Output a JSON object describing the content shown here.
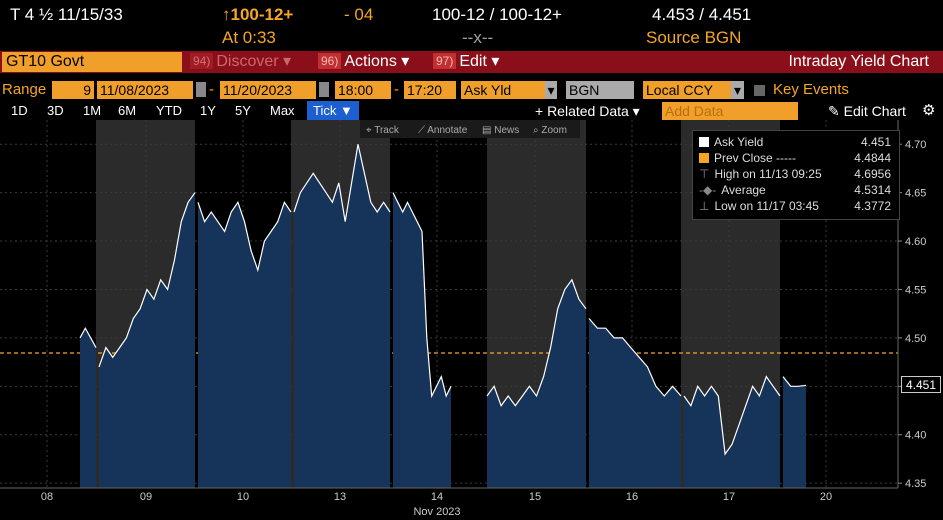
{
  "quote": {
    "symbol": "T 4 ½ 11/15/33",
    "price_change": "↑100-12+",
    "change": "- 04",
    "bid_ask": "100-12 / 100-12+",
    "yields": "4.453 / 4.451",
    "at_label": "At 0:33",
    "dashes": "--x--",
    "source": "Source BGN"
  },
  "header": {
    "ticker": "GT10 Govt",
    "discover_num": "94)",
    "discover": "Discover",
    "actions_num": "96)",
    "actions": "Actions",
    "edit_num": "97)",
    "edit": "Edit",
    "title": "Intraday Yield Chart"
  },
  "range_row": {
    "range_label": "Range",
    "interval": "9",
    "start_date": "11/08/2023",
    "end_date": "11/20/2023",
    "start_time": "18:00",
    "end_time": "17:20",
    "field": "Ask Yld",
    "source": "BGN",
    "currency": "Local CCY",
    "key_events": "Key Events"
  },
  "periods": [
    "1D",
    "3D",
    "1M",
    "6M",
    "YTD",
    "1Y",
    "5Y",
    "Max"
  ],
  "tick_label": "Tick ▼",
  "related_data": "+ Related Data ▾",
  "add_data_placeholder": "Add Data",
  "edit_chart": "✎ Edit Chart",
  "chart_tools": [
    "⌖ Track",
    "⟋ Annotate",
    "▤ News",
    "⌕ Zoom"
  ],
  "legend": {
    "ask_yield_label": "Ask Yield",
    "ask_yield_value": "4.451",
    "prev_close_label": "Prev Close -----",
    "prev_close_value": "4.4844",
    "high_label": "High on 11/13 09:25",
    "high_value": "4.6956",
    "average_label": "Average",
    "average_value": "4.5314",
    "low_label": "Low on 11/17 03:45",
    "low_value": "4.3772"
  },
  "last_value_label": "4.451",
  "colors": {
    "area_fill": "#16335a",
    "line": "#ffffff",
    "prev_close": "#f5a623",
    "session_bg": "#2b2b2b",
    "header_bg": "#8b0f1a",
    "accent": "#f0a02a"
  },
  "chart_data": {
    "type": "area",
    "title": "Intraday Yield Chart",
    "xlabel": "Nov 2023",
    "ylabel": "",
    "x_ticks": [
      "08",
      "09",
      "10",
      "13",
      "14",
      "15",
      "16",
      "17",
      "20"
    ],
    "y_ticks": [
      4.35,
      4.4,
      4.45,
      4.5,
      4.55,
      4.6,
      4.65,
      4.7
    ],
    "ylim": [
      4.345,
      4.725
    ],
    "prev_close": 4.4844,
    "grid": true,
    "series": [
      {
        "name": "Ask Yield",
        "sessions": [
          {
            "day": "11/08",
            "values": [
              4.5,
              4.51,
              4.5,
              4.49
            ]
          },
          {
            "day": "11/09",
            "values": [
              4.47,
              4.49,
              4.48,
              4.49,
              4.5,
              4.52,
              4.53,
              4.55,
              4.54,
              4.56,
              4.55,
              4.58,
              4.62,
              4.64,
              4.65
            ]
          },
          {
            "day": "11/10",
            "values": [
              4.64,
              4.62,
              4.63,
              4.62,
              4.61,
              4.63,
              4.64,
              4.62,
              4.59,
              4.57,
              4.6,
              4.61,
              4.62,
              4.64,
              4.63
            ]
          },
          {
            "day": "11/13",
            "values": [
              4.63,
              4.65,
              4.66,
              4.67,
              4.66,
              4.65,
              4.64,
              4.66,
              4.62,
              4.66,
              4.7,
              4.67,
              4.64,
              4.63,
              4.64,
              4.63
            ]
          },
          {
            "day": "11/14",
            "values": [
              4.65,
              4.64,
              4.63,
              4.64,
              4.63,
              4.62,
              4.61,
              4.5,
              4.44,
              4.45,
              4.46,
              4.44,
              4.45
            ]
          },
          {
            "day": "11/15",
            "values": [
              4.44,
              4.45,
              4.43,
              4.44,
              4.43,
              4.44,
              4.45,
              4.44,
              4.46,
              4.49,
              4.53,
              4.55,
              4.56,
              4.54,
              4.53
            ]
          },
          {
            "day": "11/16",
            "values": [
              4.52,
              4.51,
              4.51,
              4.5,
              4.5,
              4.49,
              4.48,
              4.47,
              4.45,
              4.44,
              4.45,
              4.44
            ]
          },
          {
            "day": "11/17",
            "values": [
              4.44,
              4.43,
              4.45,
              4.44,
              4.45,
              4.44,
              4.38,
              4.39,
              4.41,
              4.43,
              4.45,
              4.44,
              4.46,
              4.45,
              4.44
            ]
          },
          {
            "day": "11/20",
            "values": [
              4.46,
              4.45,
              4.45,
              4.451
            ]
          }
        ]
      }
    ]
  }
}
